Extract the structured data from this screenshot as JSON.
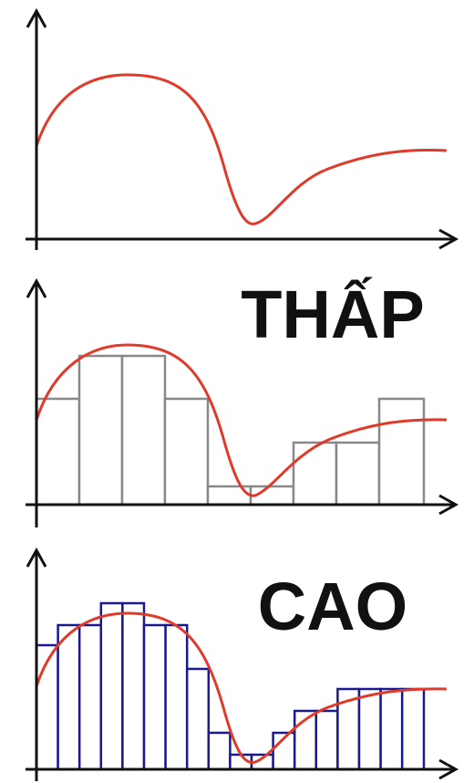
{
  "labels": {
    "low": "THẤP",
    "high": "CAO"
  }
}
